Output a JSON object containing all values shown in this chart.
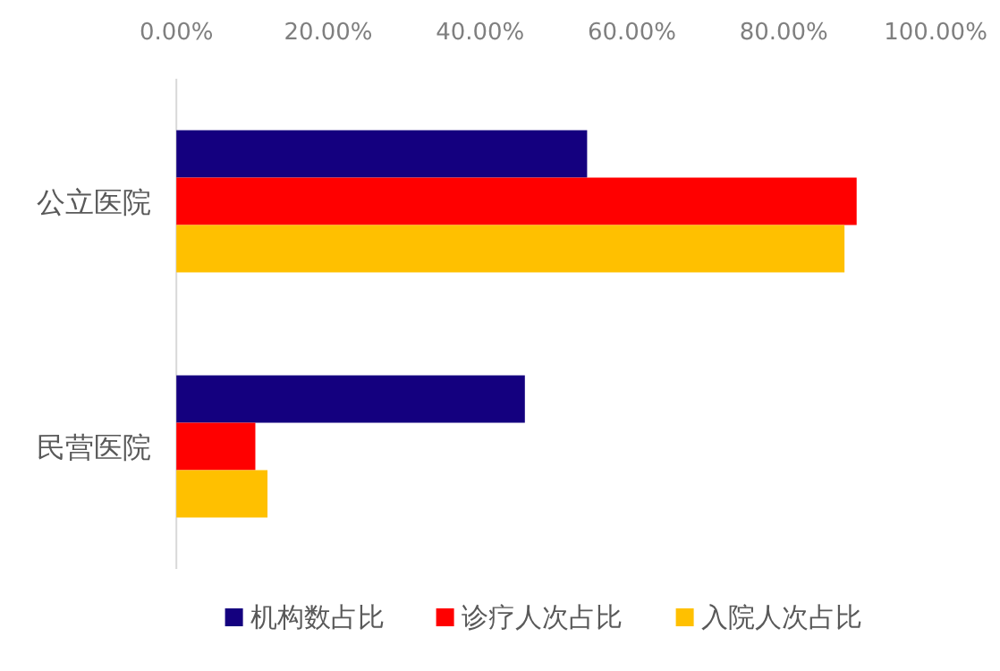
{
  "chart_data": {
    "type": "bar",
    "orientation": "horizontal",
    "categories": [
      "公立医院",
      "民营医院"
    ],
    "series": [
      {
        "name": "机构数占比",
        "color": "#14007f",
        "values": [
          54.1,
          45.9
        ]
      },
      {
        "name": "诊疗人次占比",
        "color": "#ff0000",
        "values": [
          89.6,
          10.4
        ]
      },
      {
        "name": "入院人次占比",
        "color": "#ffc000",
        "values": [
          88.0,
          12.0
        ]
      }
    ],
    "xlim": [
      0,
      100
    ],
    "xticks": [
      {
        "value": 0,
        "label": "0.00%"
      },
      {
        "value": 20,
        "label": "20.00%"
      },
      {
        "value": 40,
        "label": "40.00%"
      },
      {
        "value": 60,
        "label": "60.00%"
      },
      {
        "value": 80,
        "label": "80.00%"
      },
      {
        "value": 100,
        "label": "100.00%"
      }
    ],
    "legend": "bottom"
  }
}
